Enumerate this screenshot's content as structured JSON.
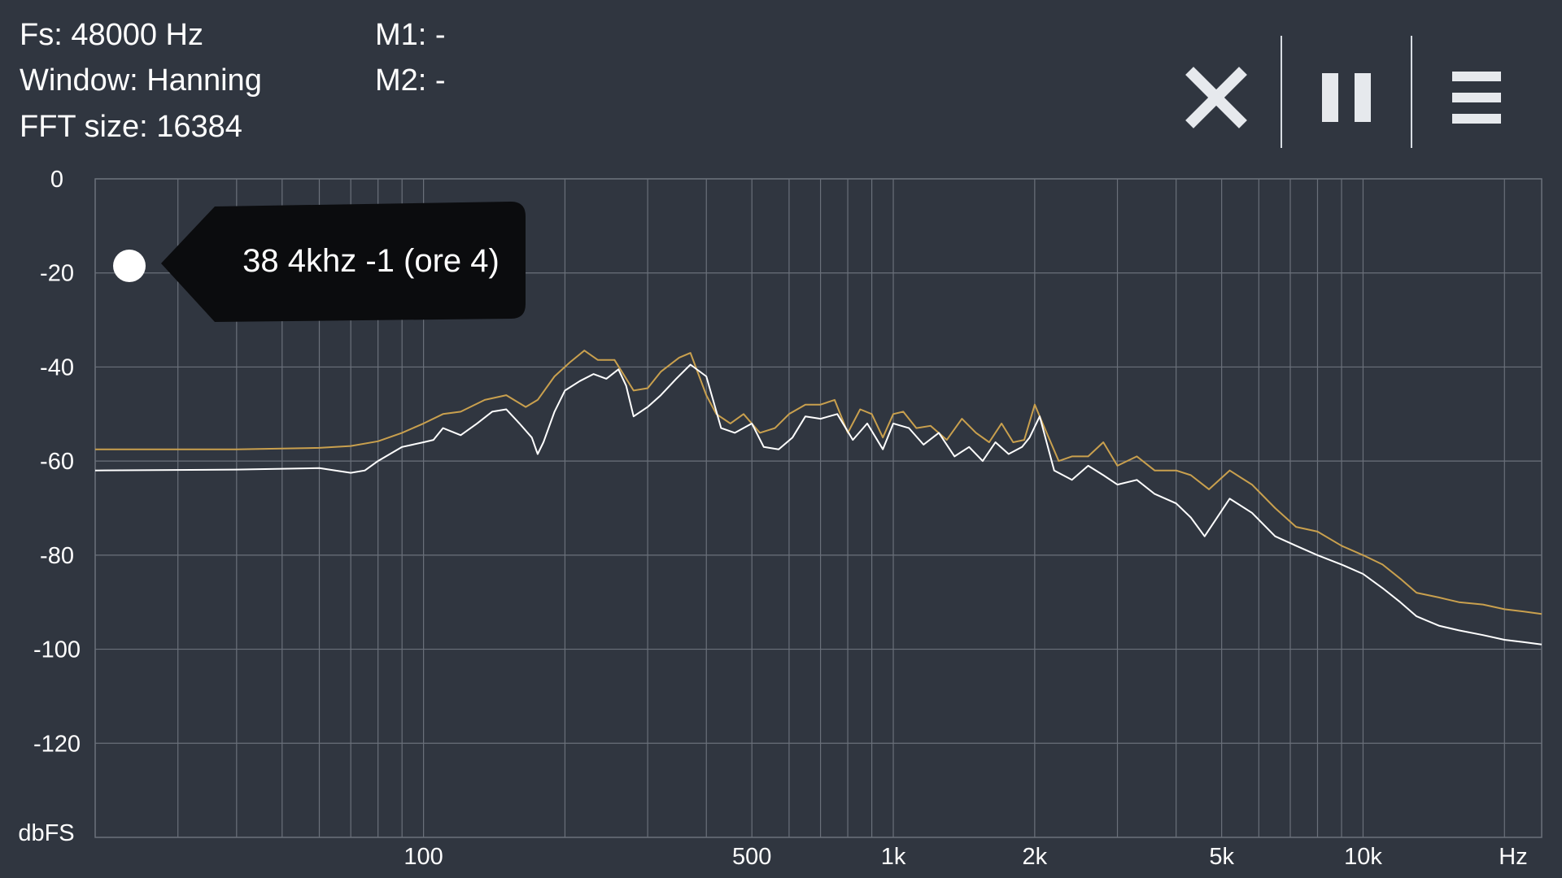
{
  "info": {
    "fs": "Fs: 48000 Hz",
    "window": "Window: Hanning",
    "fft_size": "FFT size: 16384",
    "m1": "M1: -",
    "m2": "M2: -"
  },
  "toolbar": {
    "close_icon": "close-icon",
    "pause_icon": "pause-icon",
    "menu_icon": "menu-icon"
  },
  "tooltip": {
    "text": "38 4khz -1 (ore 4)"
  },
  "colors": {
    "background": "#303640",
    "grid": "#6a707a",
    "series_peak": "#c9a04e",
    "series_live": "#ffffff",
    "tooltip_bg": "#0b0c0e"
  },
  "chart_data": {
    "type": "line",
    "x_scale": "log",
    "xlim": [
      20,
      24000
    ],
    "ylim": [
      -140,
      0
    ],
    "ylabel": "dbFS",
    "xlabel": "Hz",
    "y_ticks": [
      0,
      -20,
      -40,
      -60,
      -80,
      -100,
      -120
    ],
    "y_tick_labels": [
      "0",
      "-20",
      "-40",
      "-60",
      "-80",
      "-100",
      "-120"
    ],
    "x_labeled_ticks": [
      100,
      500,
      1000,
      2000,
      5000,
      10000
    ],
    "x_tick_labels": [
      "100",
      "500",
      "1k",
      "2k",
      "5k",
      "10k"
    ],
    "grid": true,
    "series": [
      {
        "color": "#c9a04e",
        "points": [
          [
            20,
            -57.5
          ],
          [
            40,
            -57.5
          ],
          [
            60,
            -57.2
          ],
          [
            70,
            -56.8
          ],
          [
            80,
            -55.8
          ],
          [
            90,
            -54.0
          ],
          [
            100,
            -52.0
          ],
          [
            110,
            -50.0
          ],
          [
            120,
            -49.5
          ],
          [
            135,
            -47.0
          ],
          [
            150,
            -46.0
          ],
          [
            165,
            -48.5
          ],
          [
            175,
            -47.0
          ],
          [
            190,
            -42.0
          ],
          [
            205,
            -39.0
          ],
          [
            220,
            -36.5
          ],
          [
            235,
            -38.5
          ],
          [
            255,
            -38.5
          ],
          [
            280,
            -45.0
          ],
          [
            300,
            -44.5
          ],
          [
            320,
            -41.0
          ],
          [
            350,
            -38.0
          ],
          [
            370,
            -37.0
          ],
          [
            400,
            -46.0
          ],
          [
            420,
            -50.0
          ],
          [
            450,
            -52.0
          ],
          [
            480,
            -50.0
          ],
          [
            520,
            -54.0
          ],
          [
            560,
            -53.0
          ],
          [
            600,
            -50.0
          ],
          [
            650,
            -48.0
          ],
          [
            700,
            -48.0
          ],
          [
            750,
            -47.0
          ],
          [
            800,
            -54.0
          ],
          [
            850,
            -49.0
          ],
          [
            900,
            -50.0
          ],
          [
            950,
            -55.0
          ],
          [
            1000,
            -50.0
          ],
          [
            1050,
            -49.5
          ],
          [
            1120,
            -53.0
          ],
          [
            1200,
            -52.5
          ],
          [
            1300,
            -55.5
          ],
          [
            1400,
            -51.0
          ],
          [
            1500,
            -54.0
          ],
          [
            1600,
            -56.0
          ],
          [
            1700,
            -52.0
          ],
          [
            1800,
            -56.0
          ],
          [
            1900,
            -55.5
          ],
          [
            2000,
            -48.0
          ],
          [
            2100,
            -53.0
          ],
          [
            2250,
            -60.0
          ],
          [
            2400,
            -59.0
          ],
          [
            2600,
            -59.0
          ],
          [
            2800,
            -56.0
          ],
          [
            3000,
            -61.0
          ],
          [
            3300,
            -59.0
          ],
          [
            3600,
            -62.0
          ],
          [
            4000,
            -62.0
          ],
          [
            4300,
            -63.0
          ],
          [
            4700,
            -66.0
          ],
          [
            5200,
            -62.0
          ],
          [
            5800,
            -65.0
          ],
          [
            6500,
            -70.0
          ],
          [
            7200,
            -74.0
          ],
          [
            8000,
            -75.0
          ],
          [
            9000,
            -78.0
          ],
          [
            10000,
            -80.0
          ],
          [
            11000,
            -82.0
          ],
          [
            12000,
            -85.0
          ],
          [
            13000,
            -88.0
          ],
          [
            14500,
            -89.0
          ],
          [
            16000,
            -90.0
          ],
          [
            18000,
            -90.5
          ],
          [
            20000,
            -91.5
          ],
          [
            22000,
            -92.0
          ],
          [
            24000,
            -92.5
          ]
        ]
      },
      {
        "color": "#ffffff",
        "points": [
          [
            20,
            -62.0
          ],
          [
            40,
            -61.8
          ],
          [
            60,
            -61.5
          ],
          [
            70,
            -62.5
          ],
          [
            75,
            -62.0
          ],
          [
            80,
            -60.0
          ],
          [
            90,
            -57.0
          ],
          [
            100,
            -56.0
          ],
          [
            105,
            -55.5
          ],
          [
            110,
            -53.0
          ],
          [
            120,
            -54.5
          ],
          [
            130,
            -52.0
          ],
          [
            140,
            -49.5
          ],
          [
            150,
            -49.0
          ],
          [
            160,
            -52.0
          ],
          [
            170,
            -55.0
          ],
          [
            175,
            -58.5
          ],
          [
            180,
            -56.0
          ],
          [
            190,
            -49.5
          ],
          [
            200,
            -45.0
          ],
          [
            215,
            -43.0
          ],
          [
            230,
            -41.5
          ],
          [
            245,
            -42.5
          ],
          [
            260,
            -40.5
          ],
          [
            270,
            -44.0
          ],
          [
            280,
            -50.5
          ],
          [
            300,
            -48.5
          ],
          [
            320,
            -46.0
          ],
          [
            345,
            -42.5
          ],
          [
            370,
            -39.5
          ],
          [
            400,
            -42.0
          ],
          [
            430,
            -53.0
          ],
          [
            460,
            -54.0
          ],
          [
            500,
            -52.0
          ],
          [
            530,
            -57.0
          ],
          [
            570,
            -57.5
          ],
          [
            610,
            -55.0
          ],
          [
            650,
            -50.5
          ],
          [
            700,
            -51.0
          ],
          [
            760,
            -50.0
          ],
          [
            820,
            -55.5
          ],
          [
            880,
            -52.0
          ],
          [
            950,
            -57.5
          ],
          [
            1000,
            -52.0
          ],
          [
            1080,
            -53.0
          ],
          [
            1160,
            -56.5
          ],
          [
            1250,
            -54.0
          ],
          [
            1350,
            -59.0
          ],
          [
            1450,
            -57.0
          ],
          [
            1550,
            -60.0
          ],
          [
            1650,
            -56.0
          ],
          [
            1760,
            -58.5
          ],
          [
            1880,
            -57.0
          ],
          [
            1950,
            -55.0
          ],
          [
            2050,
            -50.5
          ],
          [
            2200,
            -62.0
          ],
          [
            2400,
            -64.0
          ],
          [
            2600,
            -61.0
          ],
          [
            2800,
            -63.0
          ],
          [
            3000,
            -65.0
          ],
          [
            3300,
            -64.0
          ],
          [
            3600,
            -67.0
          ],
          [
            4000,
            -69.0
          ],
          [
            4300,
            -72.0
          ],
          [
            4600,
            -76.0
          ],
          [
            5200,
            -68.0
          ],
          [
            5800,
            -71.0
          ],
          [
            6500,
            -76.0
          ],
          [
            7200,
            -78.0
          ],
          [
            8000,
            -80.0
          ],
          [
            9000,
            -82.0
          ],
          [
            10000,
            -84.0
          ],
          [
            11000,
            -87.0
          ],
          [
            12000,
            -90.0
          ],
          [
            13000,
            -93.0
          ],
          [
            14500,
            -95.0
          ],
          [
            16000,
            -96.0
          ],
          [
            18000,
            -97.0
          ],
          [
            20000,
            -98.0
          ],
          [
            22000,
            -98.5
          ],
          [
            24000,
            -99.0
          ]
        ]
      }
    ]
  }
}
